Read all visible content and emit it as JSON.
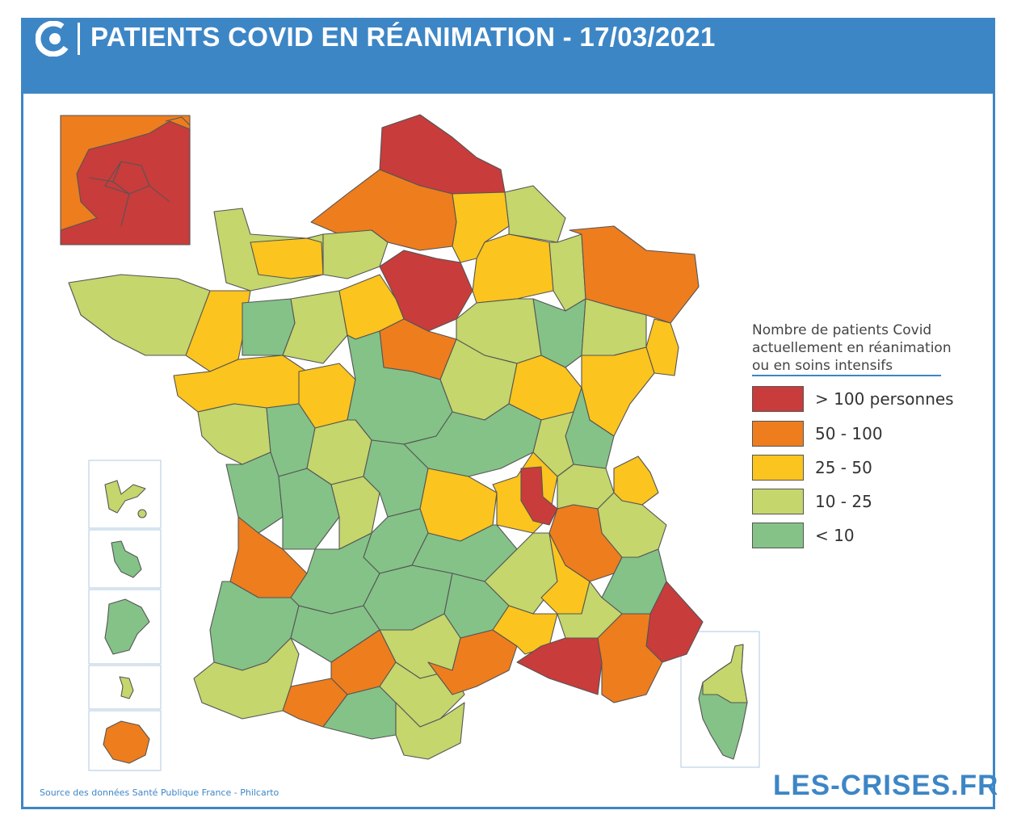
{
  "header": {
    "title": "PATIENTS COVID EN RÉANIMATION - 17/03/2021",
    "logo_icon": "les-crises-logo-icon"
  },
  "legend": {
    "title_lines": [
      "Nombre de patients Covid",
      "actuellement en réanimation",
      "ou en soins intensifs"
    ],
    "classes": [
      {
        "label": "> 100 personnes",
        "color": "#c83c3b"
      },
      {
        "label": "50 - 100",
        "color": "#ee7d1e"
      },
      {
        "label": "25 - 50",
        "color": "#fbc41e"
      },
      {
        "label": "10 - 25",
        "color": "#c4d66c"
      },
      {
        "label": "< 10",
        "color": "#84c288"
      }
    ]
  },
  "colors": {
    "brand_blue": "#3d86c6",
    "border": "#555555"
  },
  "footer": {
    "source": "Source des données Santé Publique France - Philcarto",
    "brand": "LES-CRISES.FR"
  }
}
